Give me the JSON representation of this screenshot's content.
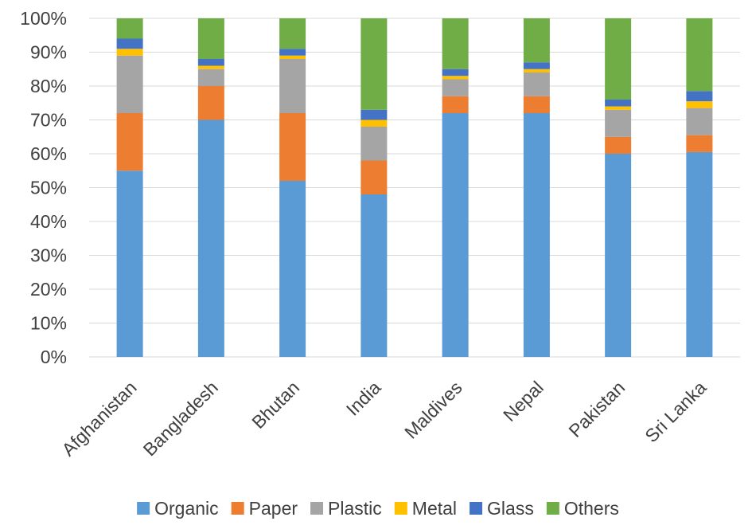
{
  "chart_data": {
    "type": "bar",
    "stacked": true,
    "normalized": true,
    "categories": [
      "Afghanistan",
      "Bangladesh",
      "Bhutan",
      "India",
      "Maldives",
      "Nepal",
      "Pakistan",
      "Sri Lanka"
    ],
    "series": [
      {
        "name": "Organic",
        "color": "#5B9BD5",
        "values": [
          55,
          70,
          52,
          48,
          72,
          72,
          60,
          60.5
        ]
      },
      {
        "name": "Paper",
        "color": "#ED7D31",
        "values": [
          17,
          10,
          20,
          10,
          5,
          5,
          5,
          5
        ]
      },
      {
        "name": "Plastic",
        "color": "#A5A5A5",
        "values": [
          17,
          5,
          16,
          10,
          5,
          7,
          8,
          8
        ]
      },
      {
        "name": "Metal",
        "color": "#FFC000",
        "values": [
          2,
          1,
          1,
          2,
          1,
          1,
          1,
          2
        ]
      },
      {
        "name": "Glass",
        "color": "#4472C4",
        "values": [
          3,
          2,
          2,
          3,
          2,
          2,
          2,
          3
        ]
      },
      {
        "name": "Others",
        "color": "#70AD47",
        "values": [
          6,
          12,
          9,
          27,
          15,
          13,
          24,
          21.5
        ]
      }
    ],
    "ylim": [
      0,
      100
    ],
    "yticks": [
      "0%",
      "10%",
      "20%",
      "30%",
      "40%",
      "50%",
      "60%",
      "70%",
      "80%",
      "90%",
      "100%"
    ],
    "grid": true,
    "legend_position": "bottom"
  }
}
